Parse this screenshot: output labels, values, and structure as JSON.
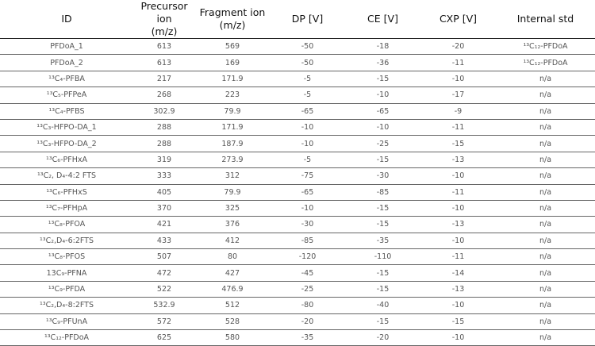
{
  "table": {
    "header": [
      "ID",
      "Precursor ion\n(m/z)",
      "Fragment ion\n(m/z)",
      "DP [V]",
      "CE [V]",
      "CXP [V]",
      "Internal std"
    ],
    "rows": [
      [
        "PFDoA_1",
        613,
        569,
        -50,
        -18,
        -20,
        "¹³C₁₂-PFDoA"
      ],
      [
        "PFDoA_2",
        613,
        169,
        -50,
        -36,
        -11,
        "¹³C₁₂-PFDoA"
      ],
      [
        "¹³C₄-PFBA",
        217,
        171.9,
        -5,
        -15,
        -10,
        "n/a"
      ],
      [
        "¹³C₅-PFPeA",
        268,
        223,
        -5,
        -10,
        -17,
        "n/a"
      ],
      [
        "¹³C₄-PFBS",
        302.9,
        79.9,
        -65,
        -65,
        -9,
        "n/a"
      ],
      [
        "¹³C₃-HFPO-DA_1",
        288,
        171.9,
        -10,
        -10,
        -11,
        "n/a"
      ],
      [
        "¹³C₃-HFPO-DA_2",
        288,
        187.9,
        -10,
        -25,
        -15,
        "n/a"
      ],
      [
        "¹³C₆-PFHxA",
        319,
        273.9,
        -5,
        -15,
        -13,
        "n/a"
      ],
      [
        "¹³C₂, D₄-4:2 FTS",
        333,
        312,
        -75,
        -30,
        -10,
        "n/a"
      ],
      [
        "¹³C₆-PFHxS",
        405,
        79.9,
        -65,
        -85,
        -11,
        "n/a"
      ],
      [
        "¹³C₇-PFHpA",
        370,
        325,
        -10,
        -15,
        -10,
        "n/a"
      ],
      [
        "¹³C₈-PFOA",
        421,
        376,
        -30,
        -15,
        -13,
        "n/a"
      ],
      [
        "¹³C₂,D₄-6:2FTS",
        433,
        412,
        -85,
        -35,
        -10,
        "n/a"
      ],
      [
        "¹³C₈-PFOS",
        507,
        80,
        -120,
        -110,
        -11,
        "n/a"
      ],
      [
        "13C₉-PFNA",
        472,
        427,
        -45,
        -15,
        -14,
        "n/a"
      ],
      [
        "¹³C₉-PFDA",
        522,
        476.9,
        -25,
        -15,
        -13,
        "n/a"
      ],
      [
        "¹³C₂,D₄-8:2FTS",
        532.9,
        512,
        -80,
        -40,
        -10,
        "n/a"
      ],
      [
        "¹³C₉-PFUnA",
        572,
        528,
        -20,
        -15,
        -15,
        "n/a"
      ],
      [
        "¹³C₁₂-PFDoA",
        625,
        580,
        -35,
        -20,
        -10,
        "n/a"
      ]
    ]
  }
}
